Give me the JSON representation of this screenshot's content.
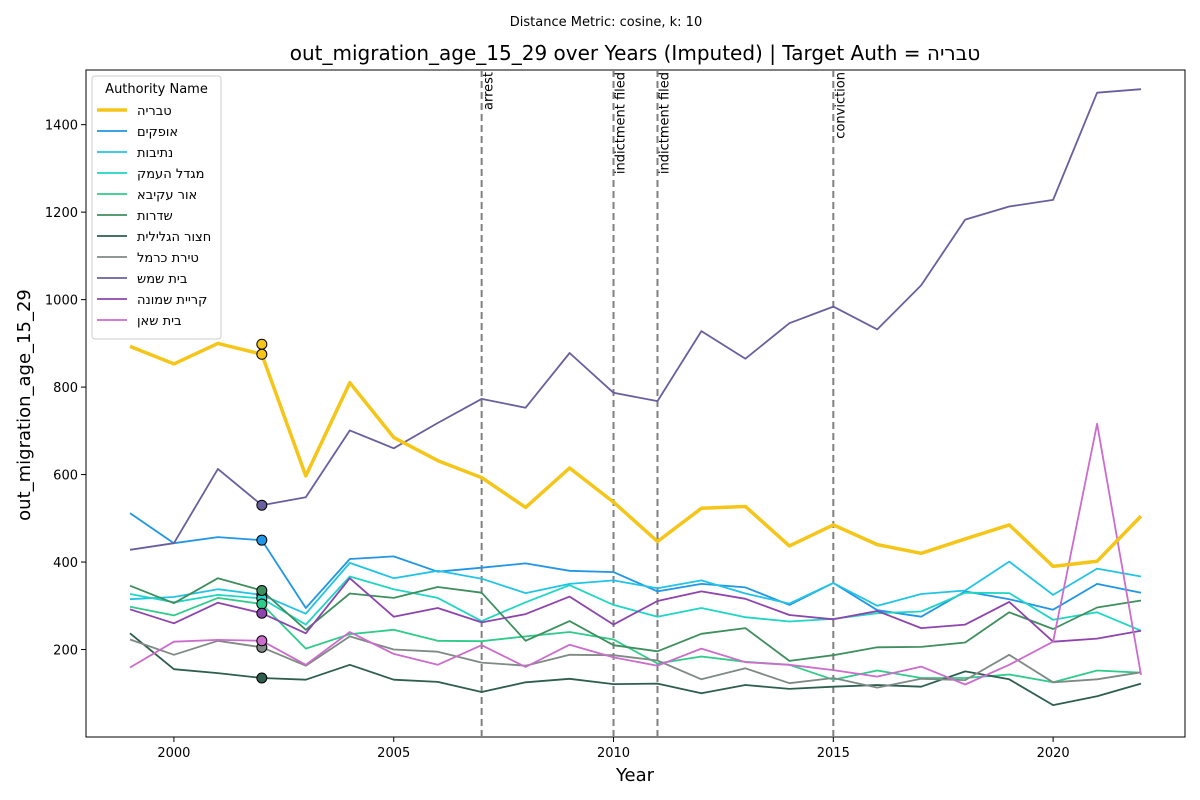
{
  "chart_data": {
    "type": "line",
    "suptitle": "Distance Metric: cosine, k: 10",
    "title": "out_migration_age_15_29 over Years (Imputed) | Target Auth = טבריה",
    "xlabel": "Year",
    "ylabel": "out_migration_age_15_29",
    "xlim": [
      1998,
      2023
    ],
    "ylim": [
      0,
      1525
    ],
    "xticks": [
      2000,
      2005,
      2010,
      2015,
      2020
    ],
    "yticks": [
      200,
      400,
      600,
      800,
      1000,
      1200,
      1400
    ],
    "grid": false,
    "legend": {
      "title": "Authority Name",
      "placement": "upper-left"
    },
    "x": [
      1999,
      2000,
      2001,
      2002,
      2003,
      2004,
      2005,
      2006,
      2007,
      2008,
      2009,
      2010,
      2011,
      2012,
      2013,
      2014,
      2015,
      2016,
      2017,
      2018,
      2019,
      2020,
      2021,
      2022
    ],
    "imputed_year": 2002,
    "events": [
      {
        "x": 2007,
        "label": "arrest"
      },
      {
        "x": 2010,
        "label": "indictment filed"
      },
      {
        "x": 2011,
        "label": "indictment filed"
      },
      {
        "x": 2015,
        "label": "conviction"
      }
    ],
    "series": [
      {
        "name": "טבריה",
        "color": "#f5c518",
        "target": true,
        "values": [
          893,
          853,
          900,
          875,
          597,
          810,
          685,
          632,
          593,
          525,
          615,
          537,
          447,
          523,
          527,
          437,
          485,
          440,
          420,
          453,
          485,
          390,
          402,
          505
        ],
        "imputed_values": [
          898,
          875
        ]
      },
      {
        "name": "אופקים",
        "color": "#2196e6",
        "values": [
          512,
          443,
          457,
          450,
          295,
          407,
          413,
          378,
          387,
          397,
          380,
          377,
          333,
          350,
          342,
          302,
          352,
          290,
          275,
          333,
          315,
          291,
          350,
          330
        ],
        "imputed_values": [
          450
        ]
      },
      {
        "name": "נתיבות",
        "color": "#22c4e6",
        "values": [
          315,
          320,
          338,
          325,
          282,
          398,
          363,
          380,
          362,
          329,
          350,
          358,
          340,
          358,
          328,
          305,
          352,
          300,
          327,
          335,
          401,
          325,
          385,
          367
        ],
        "imputed_values": [
          325
        ]
      },
      {
        "name": "מגדל העמק",
        "color": "#1fd6c4",
        "values": [
          327,
          308,
          325,
          317,
          257,
          367,
          338,
          318,
          265,
          308,
          347,
          302,
          275,
          295,
          274,
          264,
          270,
          283,
          287,
          330,
          329,
          268,
          285,
          243
        ],
        "imputed_values": [
          317
        ]
      },
      {
        "name": "אור עקיבא",
        "color": "#2ecc8a",
        "values": [
          298,
          278,
          318,
          304,
          202,
          235,
          245,
          220,
          219,
          230,
          240,
          223,
          168,
          184,
          172,
          165,
          131,
          152,
          135,
          135,
          143,
          125,
          152,
          147
        ],
        "imputed_values": [
          304
        ]
      },
      {
        "name": "שדרות",
        "color": "#3f8f5e",
        "values": [
          346,
          306,
          363,
          335,
          245,
          328,
          318,
          343,
          330,
          220,
          265,
          210,
          196,
          236,
          249,
          174,
          187,
          205,
          206,
          216,
          285,
          247,
          296,
          312
        ],
        "imputed_values": [
          335
        ]
      },
      {
        "name": "חצור הגלילית",
        "color": "#2e5e4e",
        "values": [
          237,
          155,
          146,
          135,
          131,
          165,
          131,
          126,
          103,
          125,
          133,
          121,
          122,
          100,
          119,
          110,
          115,
          119,
          115,
          150,
          132,
          73,
          93,
          122
        ],
        "imputed_values": [
          135
        ]
      },
      {
        "name": "טירת כרמל",
        "color": "#7f8a84",
        "values": [
          223,
          188,
          220,
          205,
          163,
          230,
          200,
          195,
          170,
          163,
          188,
          187,
          175,
          132,
          157,
          123,
          135,
          113,
          133,
          130,
          188,
          125,
          132,
          148
        ],
        "imputed_values": [
          205
        ]
      },
      {
        "name": "בית שמש",
        "color": "#6a5f9e",
        "values": [
          428,
          443,
          613,
          530,
          548,
          701,
          660,
          718,
          773,
          753,
          878,
          787,
          768,
          928,
          865,
          946,
          984,
          932,
          1033,
          1183,
          1213,
          1228,
          1473,
          1481
        ],
        "imputed_values": [
          530
        ]
      },
      {
        "name": "קריית שמונה",
        "color": "#8e44ad",
        "values": [
          292,
          260,
          307,
          283,
          237,
          363,
          275,
          295,
          262,
          281,
          321,
          257,
          311,
          333,
          316,
          279,
          269,
          288,
          249,
          257,
          309,
          218,
          225,
          243
        ],
        "imputed_values": [
          283
        ]
      },
      {
        "name": "בית שאן",
        "color": "#cc6ccc",
        "values": [
          159,
          218,
          222,
          220,
          165,
          240,
          190,
          165,
          210,
          160,
          211,
          182,
          163,
          202,
          171,
          165,
          153,
          138,
          161,
          120,
          165,
          218,
          716,
          142
        ],
        "imputed_values": [
          220
        ]
      }
    ]
  }
}
